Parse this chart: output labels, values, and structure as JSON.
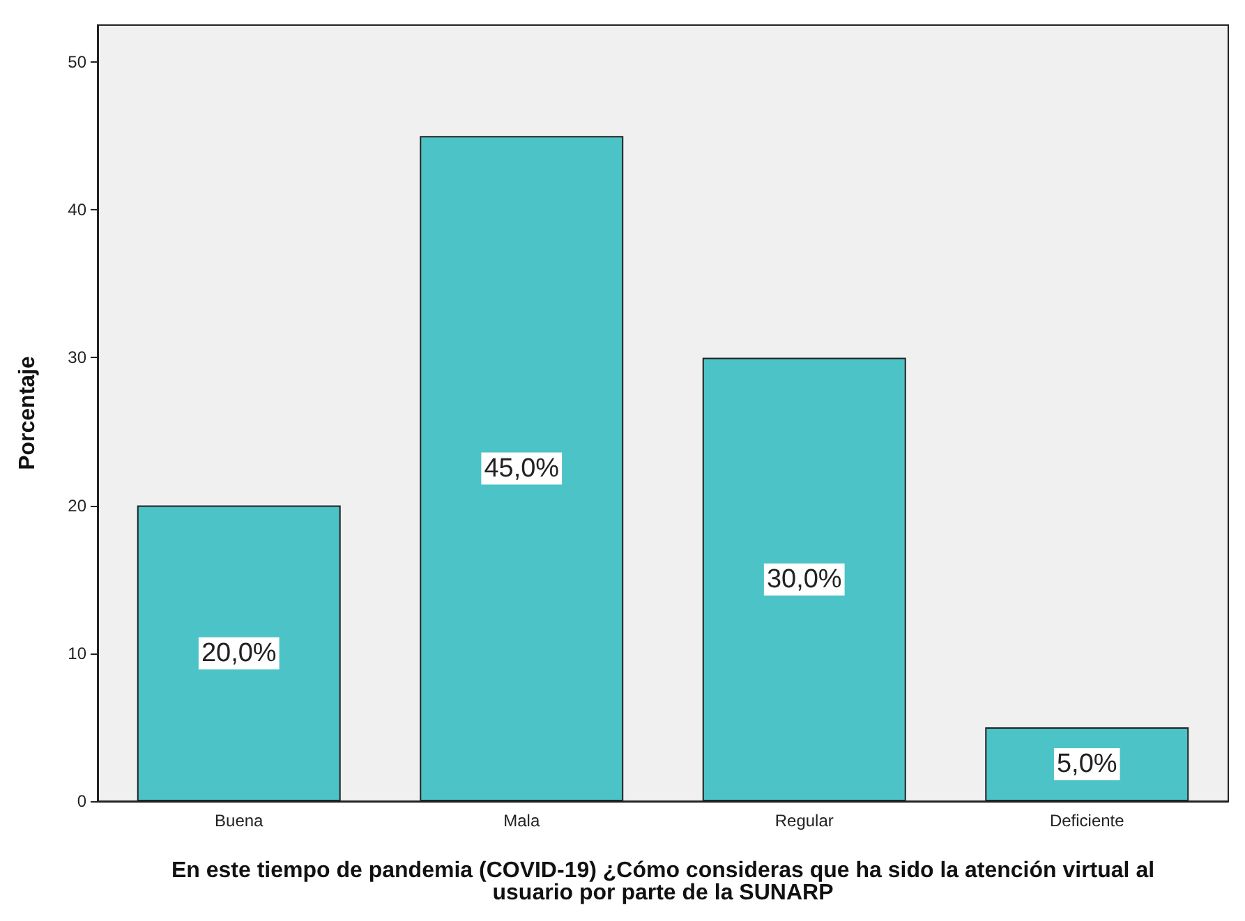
{
  "chart_data": {
    "type": "bar",
    "xlabel": "En este tiempo de pandemia (COVID-19) ¿Cómo consideras que ha sido la atención virtual al usuario por parte de la SUNARP",
    "ylabel": "Porcentaje",
    "categories": [
      "Buena",
      "Mala",
      "Regular",
      "Deficiente"
    ],
    "values": [
      20,
      45,
      30,
      5
    ],
    "value_labels": [
      "20,0%",
      "45,0%",
      "30,0%",
      "5,0%"
    ],
    "color": "#4cc3c6",
    "ylim": [
      0,
      52.5
    ],
    "yticks": [
      0,
      10,
      20,
      30,
      40,
      50
    ],
    "grid": false
  }
}
